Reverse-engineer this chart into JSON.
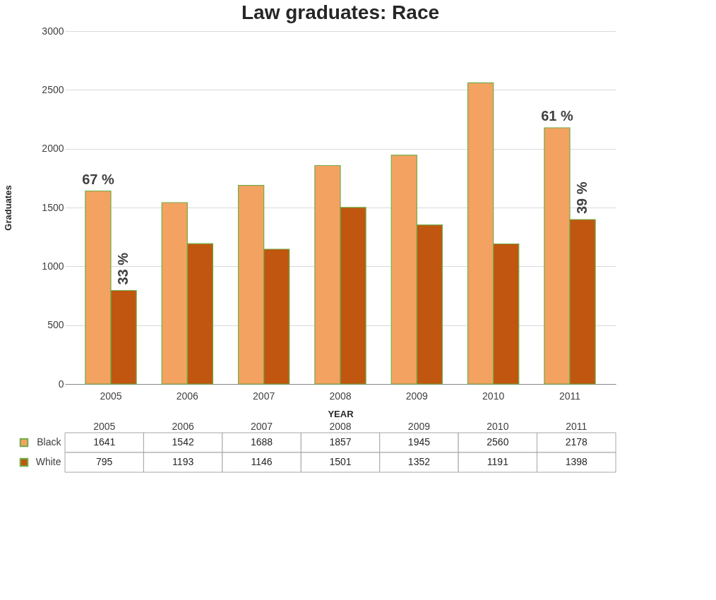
{
  "chart_data": {
    "type": "bar",
    "title": "Law graduates: Race",
    "xlabel": "YEAR",
    "ylabel": "Graduates",
    "categories": [
      "2005",
      "2006",
      "2007",
      "2008",
      "2009",
      "2010",
      "2011"
    ],
    "series": [
      {
        "name": "Black",
        "color": "#f4a261",
        "values": [
          1641,
          1542,
          1688,
          1857,
          1945,
          2560,
          2178
        ]
      },
      {
        "name": "White",
        "color": "#c0560f",
        "values": [
          795,
          1193,
          1146,
          1501,
          1352,
          1191,
          1398
        ]
      }
    ],
    "ylim": [
      0,
      3000
    ],
    "yticks": [
      0,
      500,
      1000,
      1500,
      2000,
      2500,
      3000
    ],
    "grid": "y",
    "legend": "bottom",
    "data_labels": true,
    "annotations": [
      {
        "text": "67 %",
        "x": "2005",
        "y": 1641
      },
      {
        "text": "33 %",
        "x": "2005",
        "y": 795
      },
      {
        "text": "61 %",
        "x": "2011",
        "y": 2178
      },
      {
        "text": "39 %",
        "x": "2011",
        "y": 1398
      }
    ]
  }
}
